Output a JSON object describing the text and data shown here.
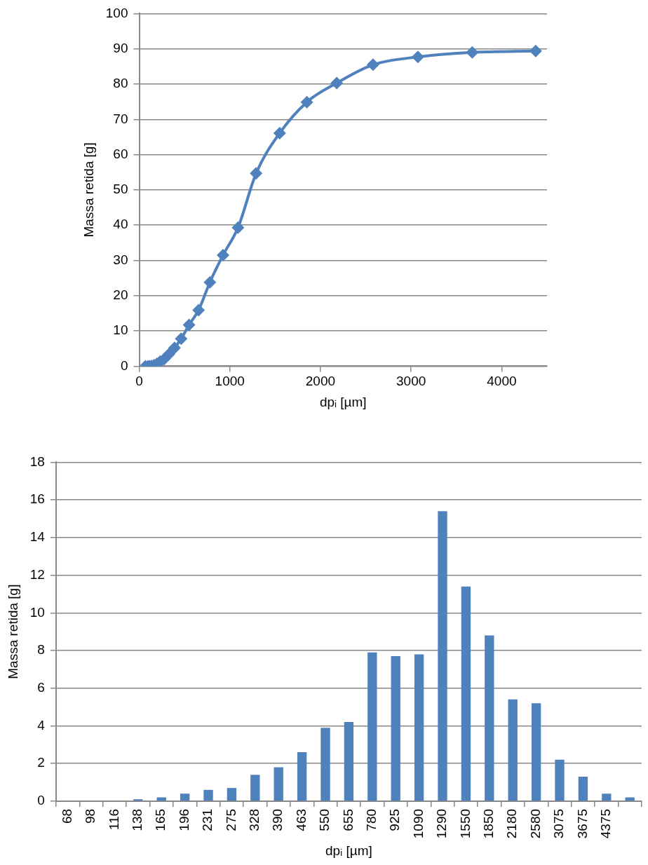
{
  "chart_data": [
    {
      "type": "line",
      "xlabel": "dpᵢ [µm]",
      "ylabel": "Massa retida [g]",
      "x": [
        68,
        98,
        116,
        138,
        165,
        196,
        231,
        275,
        328,
        390,
        463,
        550,
        655,
        780,
        925,
        1090,
        1290,
        1550,
        1850,
        2180,
        2580,
        3075,
        3675,
        4375
      ],
      "series": [
        {
          "color": "#4f81bd",
          "values": [
            0,
            0,
            0,
            0.1,
            0.3,
            0.7,
            1.3,
            2.0,
            3.4,
            5.2,
            7.8,
            11.7,
            15.9,
            23.8,
            31.5,
            39.3,
            54.7,
            66.1,
            74.9,
            80.3,
            85.5,
            87.7,
            89.0,
            89.4
          ]
        }
      ],
      "xlim": [
        0,
        4500
      ],
      "xticks": [
        0,
        1000,
        2000,
        3000,
        4000
      ],
      "ylim": [
        0,
        100
      ],
      "yticks": [
        0,
        10,
        20,
        30,
        40,
        50,
        60,
        70,
        80,
        90,
        100
      ],
      "grid": "y",
      "legend": false,
      "marker": "diamond",
      "line_style": "solid"
    },
    {
      "type": "bar",
      "xlabel": "dpᵢ [µm]",
      "ylabel": "Massa retida [g]",
      "categories": [
        "68",
        "98",
        "116",
        "138",
        "165",
        "196",
        "231",
        "275",
        "328",
        "390",
        "463",
        "550",
        "655",
        "780",
        "925",
        "1090",
        "1290",
        "1550",
        "1850",
        "2180",
        "2580",
        "3075",
        "3675",
        "4375",
        null
      ],
      "series": [
        {
          "color": "#4f81bd",
          "values": [
            0,
            0,
            0,
            0.1,
            0.2,
            0.4,
            0.6,
            0.7,
            1.4,
            1.8,
            2.6,
            3.9,
            4.2,
            7.9,
            7.7,
            7.8,
            15.4,
            11.4,
            8.8,
            5.4,
            5.2,
            2.2,
            1.3,
            0.4,
            0.2
          ]
        }
      ],
      "ylim": [
        0,
        18
      ],
      "yticks": [
        0,
        2,
        4,
        6,
        8,
        10,
        12,
        14,
        16,
        18
      ],
      "grid": "y",
      "legend": false
    }
  ]
}
